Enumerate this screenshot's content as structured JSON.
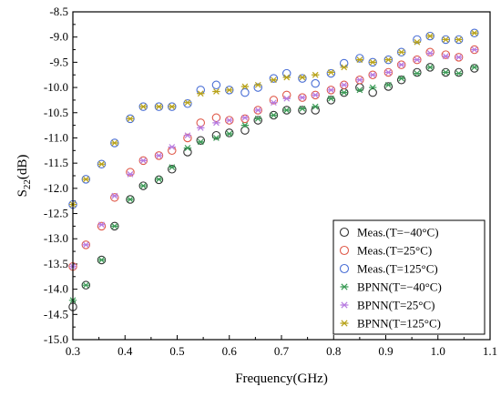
{
  "chart_data": {
    "type": "scatter",
    "xlabel": "Frequency(GHz)",
    "ylabel_main": "S",
    "ylabel_sub": "22",
    "ylabel_unit": "(dB)",
    "xlim": [
      0.3,
      1.1
    ],
    "ylim": [
      -15.0,
      -8.5
    ],
    "xticks": [
      0.3,
      0.4,
      0.5,
      0.6,
      0.7,
      0.8,
      0.9,
      1.0,
      1.1
    ],
    "yticks": [
      -15.0,
      -14.5,
      -14.0,
      -13.5,
      -13.0,
      -12.5,
      -12.0,
      -11.5,
      -11.0,
      -10.5,
      -10.0,
      -9.5,
      -9.0,
      -8.5
    ],
    "xtick_labels": [
      "0.3",
      "0.4",
      "0.5",
      "0.6",
      "0.7",
      "0.8",
      "0.9",
      "1.0",
      "1.1"
    ],
    "ytick_labels": [
      "-15.0",
      "-14.5",
      "-14.0",
      "-13.5",
      "-13.0",
      "-12.5",
      "-12.0",
      "-11.5",
      "-11.0",
      "-10.5",
      "-10.0",
      "-9.5",
      "-9.0",
      "-8.5"
    ],
    "grid": false,
    "legend_position": "bottom-right",
    "x": [
      0.3,
      0.325,
      0.355,
      0.38,
      0.41,
      0.435,
      0.465,
      0.49,
      0.52,
      0.545,
      0.575,
      0.6,
      0.63,
      0.655,
      0.685,
      0.71,
      0.74,
      0.765,
      0.795,
      0.82,
      0.85,
      0.875,
      0.905,
      0.93,
      0.96,
      0.985,
      1.015,
      1.04,
      1.07
    ],
    "series": [
      {
        "name": "Meas.(T=−40°C)",
        "marker": "circle",
        "color": "#333333",
        "values": [
          -14.35,
          -13.92,
          -13.42,
          -12.75,
          -12.22,
          -11.95,
          -11.83,
          -11.62,
          -11.28,
          -11.05,
          -10.95,
          -10.9,
          -10.85,
          -10.65,
          -10.55,
          -10.45,
          -10.45,
          -10.45,
          -10.25,
          -10.1,
          -10.0,
          -10.1,
          -9.98,
          -9.85,
          -9.7,
          -9.6,
          -9.7,
          -9.7,
          -9.62
        ]
      },
      {
        "name": "Meas.(T=25°C)",
        "marker": "circle",
        "color": "#e05a4a",
        "values": [
          -13.55,
          -13.12,
          -12.75,
          -12.18,
          -11.68,
          -11.45,
          -11.35,
          -11.25,
          -11.0,
          -10.7,
          -10.6,
          -10.65,
          -10.62,
          -10.45,
          -10.25,
          -10.15,
          -10.2,
          -10.15,
          -10.05,
          -9.95,
          -9.85,
          -9.75,
          -9.7,
          -9.55,
          -9.45,
          -9.3,
          -9.35,
          -9.4,
          -9.25
        ]
      },
      {
        "name": "Meas.(T=125°C)",
        "marker": "circle",
        "color": "#4a6fd6",
        "values": [
          -12.32,
          -11.82,
          -11.52,
          -11.1,
          -10.62,
          -10.38,
          -10.38,
          -10.38,
          -10.32,
          -10.05,
          -9.95,
          -10.05,
          -10.1,
          -10.0,
          -9.82,
          -9.72,
          -9.82,
          -9.92,
          -9.72,
          -9.52,
          -9.42,
          -9.5,
          -9.45,
          -9.3,
          -9.05,
          -8.98,
          -9.05,
          -9.05,
          -8.92
        ]
      },
      {
        "name": "BPNN(T=−40°C)",
        "marker": "asterisk",
        "color": "#3a9a55",
        "values": [
          -14.22,
          -13.92,
          -13.42,
          -12.75,
          -12.22,
          -11.95,
          -11.82,
          -11.58,
          -11.2,
          -11.08,
          -11.0,
          -10.92,
          -10.75,
          -10.62,
          -10.55,
          -10.45,
          -10.42,
          -10.38,
          -10.22,
          -10.1,
          -10.05,
          -10.0,
          -9.95,
          -9.82,
          -9.72,
          -9.6,
          -9.7,
          -9.72,
          -9.6
        ]
      },
      {
        "name": "BPNN(T=25°C)",
        "marker": "asterisk",
        "color": "#b77be0",
        "values": [
          -13.55,
          -13.12,
          -12.72,
          -12.15,
          -11.72,
          -11.45,
          -11.35,
          -11.18,
          -10.95,
          -10.8,
          -10.7,
          -10.65,
          -10.6,
          -10.45,
          -10.3,
          -10.22,
          -10.2,
          -10.15,
          -10.05,
          -9.95,
          -9.85,
          -9.75,
          -9.7,
          -9.55,
          -9.45,
          -9.32,
          -9.38,
          -9.4,
          -9.25
        ]
      },
      {
        "name": "BPNN(T=125°C)",
        "marker": "asterisk",
        "color": "#b8a21a",
        "values": [
          -12.32,
          -11.82,
          -11.52,
          -11.1,
          -10.62,
          -10.38,
          -10.38,
          -10.38,
          -10.3,
          -10.12,
          -10.08,
          -10.05,
          -9.98,
          -9.95,
          -9.85,
          -9.8,
          -9.8,
          -9.75,
          -9.7,
          -9.6,
          -9.45,
          -9.5,
          -9.45,
          -9.3,
          -9.1,
          -8.98,
          -9.05,
          -9.05,
          -8.92
        ]
      }
    ]
  }
}
